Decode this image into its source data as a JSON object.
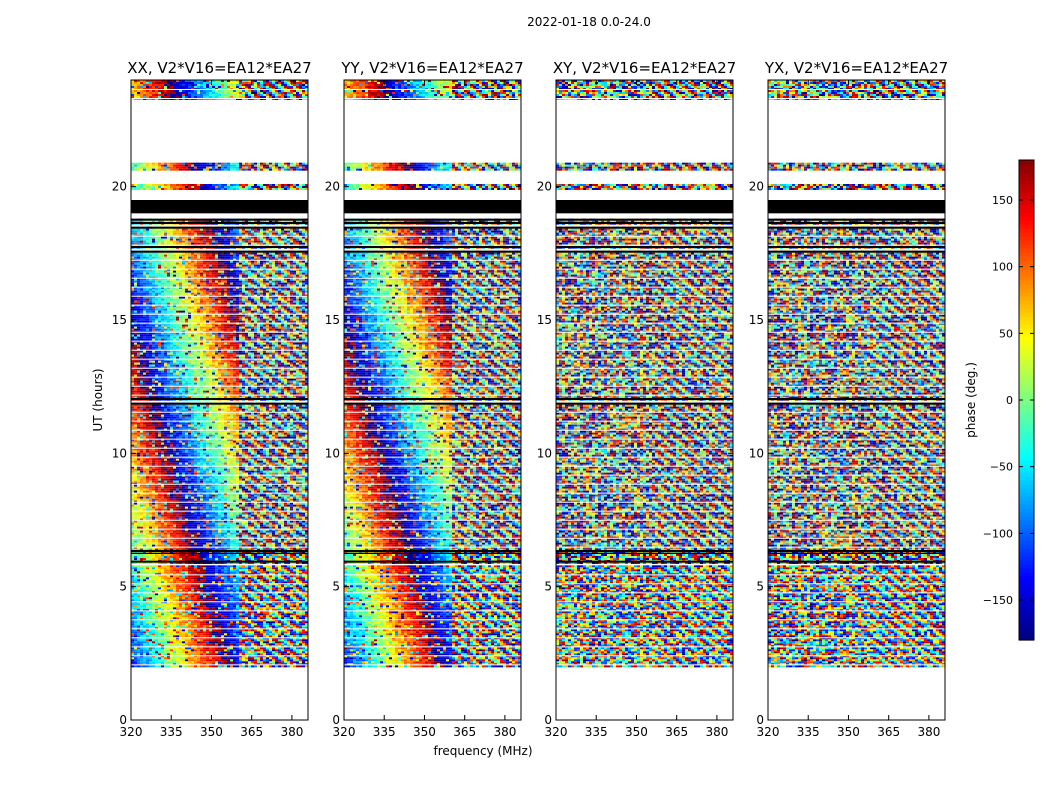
{
  "figure_title": "2022-01-18 0.0-24.0",
  "xlabel": "frequency (MHz)",
  "ylabel": "UT (hours)",
  "colorbar": {
    "label": "phase (deg.)",
    "range": [
      -180,
      180
    ],
    "ticks": [
      "150",
      "100",
      "50",
      "0",
      "−50",
      "−100",
      "−150"
    ],
    "tick_values": [
      150,
      100,
      50,
      0,
      -50,
      -100,
      -150
    ],
    "colors": [
      "#00007f",
      "#0000ff",
      "#007fff",
      "#00ffff",
      "#7fff7f",
      "#ffff00",
      "#ff7f00",
      "#ff0000",
      "#7f0000"
    ]
  },
  "chart_data": [
    {
      "type": "heatmap",
      "title": "XX, V2*V16=EA12*EA27",
      "xlabel": "frequency (MHz)",
      "ylabel": "UT (hours)",
      "xlim": [
        320,
        386
      ],
      "ylim": [
        0,
        24
      ],
      "xticks": [
        "320",
        "335",
        "350",
        "365",
        "380"
      ],
      "xtick_values": [
        320,
        335,
        350,
        365,
        380
      ],
      "yticks": [
        "0",
        "5",
        "10",
        "15",
        "20"
      ],
      "ytick_values": [
        0,
        5,
        10,
        15,
        20
      ]
    },
    {
      "type": "heatmap",
      "title": "YY, V2*V16=EA12*EA27",
      "xlim": [
        320,
        386
      ],
      "ylim": [
        0,
        24
      ],
      "xticks": [
        "320",
        "335",
        "350",
        "365",
        "380"
      ],
      "xtick_values": [
        320,
        335,
        350,
        365,
        380
      ],
      "yticks": [
        "0",
        "5",
        "10",
        "15",
        "20"
      ],
      "ytick_values": [
        0,
        5,
        10,
        15,
        20
      ]
    },
    {
      "type": "heatmap",
      "title": "XY, V2*V16=EA12*EA27",
      "xlim": [
        320,
        386
      ],
      "ylim": [
        0,
        24
      ],
      "xticks": [
        "320",
        "335",
        "350",
        "365",
        "380"
      ],
      "xtick_values": [
        320,
        335,
        350,
        365,
        380
      ],
      "yticks": [
        "0",
        "5",
        "10",
        "15",
        "20"
      ],
      "ytick_values": [
        0,
        5,
        10,
        15,
        20
      ]
    },
    {
      "type": "heatmap",
      "title": "YX, V2*V16=EA12*EA27",
      "xlim": [
        320,
        386
      ],
      "ylim": [
        0,
        24
      ],
      "xticks": [
        "320",
        "335",
        "350",
        "365",
        "380"
      ],
      "xtick_values": [
        320,
        335,
        350,
        365,
        380
      ],
      "yticks": [
        "0",
        "5",
        "10",
        "15",
        "20"
      ],
      "ytick_values": [
        0,
        5,
        10,
        15,
        20
      ]
    }
  ],
  "data_bands_ut": [
    [
      2.0,
      5.8
    ],
    [
      5.9,
      6.3
    ],
    [
      6.3,
      11.9
    ],
    [
      12.0,
      17.6
    ],
    [
      17.7,
      18.5
    ],
    [
      18.6,
      18.8
    ],
    [
      19.9,
      20.1
    ],
    [
      20.6,
      20.9
    ],
    [
      23.3,
      24.0
    ]
  ],
  "blackout_band_ut": [
    19.0,
    19.5
  ]
}
